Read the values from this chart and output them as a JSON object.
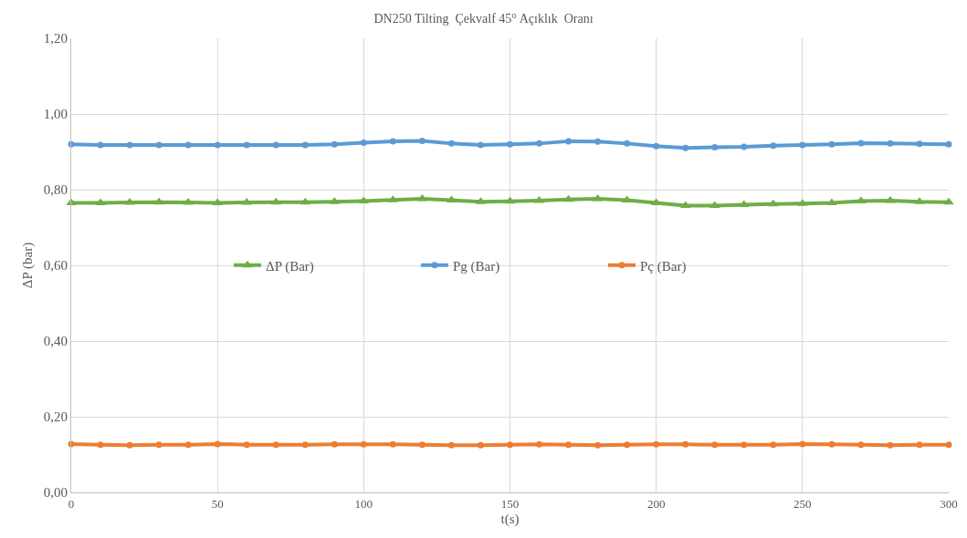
{
  "chart_data": {
    "type": "line",
    "title": "DN250 Tilting  Çekvalf 45° Açıklık  Oranı",
    "xlabel": "t(s)",
    "ylabel": "ΔP (bar)",
    "x": [
      0,
      10,
      20,
      30,
      40,
      50,
      60,
      70,
      80,
      90,
      100,
      110,
      120,
      130,
      140,
      150,
      160,
      170,
      180,
      190,
      200,
      210,
      220,
      230,
      240,
      250,
      260,
      270,
      280,
      290,
      300
    ],
    "series": [
      {
        "name": "ΔP (Bar)",
        "color": "#70ad47",
        "marker": "triangle",
        "values": [
          0.765,
          0.765,
          0.766,
          0.767,
          0.766,
          0.765,
          0.766,
          0.767,
          0.767,
          0.768,
          0.77,
          0.773,
          0.776,
          0.772,
          0.768,
          0.769,
          0.771,
          0.774,
          0.776,
          0.772,
          0.765,
          0.758,
          0.758,
          0.76,
          0.762,
          0.763,
          0.765,
          0.77,
          0.771,
          0.768,
          0.767
        ]
      },
      {
        "name": "Pg (Bar)",
        "color": "#5b9bd5",
        "marker": "circle",
        "values": [
          0.92,
          0.918,
          0.918,
          0.918,
          0.918,
          0.918,
          0.918,
          0.918,
          0.918,
          0.92,
          0.924,
          0.928,
          0.929,
          0.922,
          0.918,
          0.92,
          0.922,
          0.928,
          0.927,
          0.922,
          0.915,
          0.91,
          0.912,
          0.913,
          0.916,
          0.918,
          0.92,
          0.923,
          0.922,
          0.921,
          0.92
        ]
      },
      {
        "name": "Pç (Bar)",
        "color": "#ed7d31",
        "marker": "circle",
        "values": [
          0.128,
          0.126,
          0.125,
          0.126,
          0.126,
          0.128,
          0.126,
          0.126,
          0.126,
          0.127,
          0.127,
          0.127,
          0.126,
          0.125,
          0.125,
          0.126,
          0.127,
          0.126,
          0.125,
          0.126,
          0.127,
          0.127,
          0.126,
          0.126,
          0.126,
          0.128,
          0.127,
          0.126,
          0.125,
          0.126,
          0.126
        ]
      }
    ],
    "xlim": [
      0,
      300
    ],
    "xticks": [
      0,
      50,
      100,
      150,
      200,
      250,
      300
    ],
    "ylim": [
      0,
      1.2
    ],
    "yticks": [
      {
        "value": 0,
        "label": "0,00"
      },
      {
        "value": 0.2,
        "label": "0,20"
      },
      {
        "value": 0.4,
        "label": "0,40"
      },
      {
        "value": 0.6,
        "label": "0,60"
      },
      {
        "value": 0.8,
        "label": "0,80"
      },
      {
        "value": 1,
        "label": "1,00"
      },
      {
        "value": 1.2,
        "label": "1,20"
      }
    ],
    "grid": true,
    "legend": "center",
    "line_style": "solid"
  }
}
